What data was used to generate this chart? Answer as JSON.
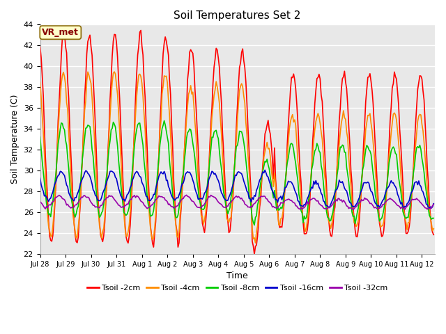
{
  "title": "Soil Temperatures Set 2",
  "xlabel": "Time",
  "ylabel": "Soil Temperature (C)",
  "ylim": [
    22,
    44
  ],
  "yticks": [
    22,
    24,
    26,
    28,
    30,
    32,
    34,
    36,
    38,
    40,
    42,
    44
  ],
  "fig_bg_color": "#ffffff",
  "plot_bg_color": "#e8e8e8",
  "grid_color": "#ffffff",
  "series": {
    "Tsoil -2cm": {
      "color": "#ff0000",
      "lw": 1.2
    },
    "Tsoil -4cm": {
      "color": "#ff8c00",
      "lw": 1.2
    },
    "Tsoil -8cm": {
      "color": "#00cc00",
      "lw": 1.2
    },
    "Tsoil -16cm": {
      "color": "#0000cc",
      "lw": 1.2
    },
    "Tsoil -32cm": {
      "color": "#9900aa",
      "lw": 1.2
    }
  },
  "annotation_text": "VR_met",
  "annotation_color": "#880000",
  "annotation_bg": "#ffffcc",
  "annotation_border": "#886600"
}
